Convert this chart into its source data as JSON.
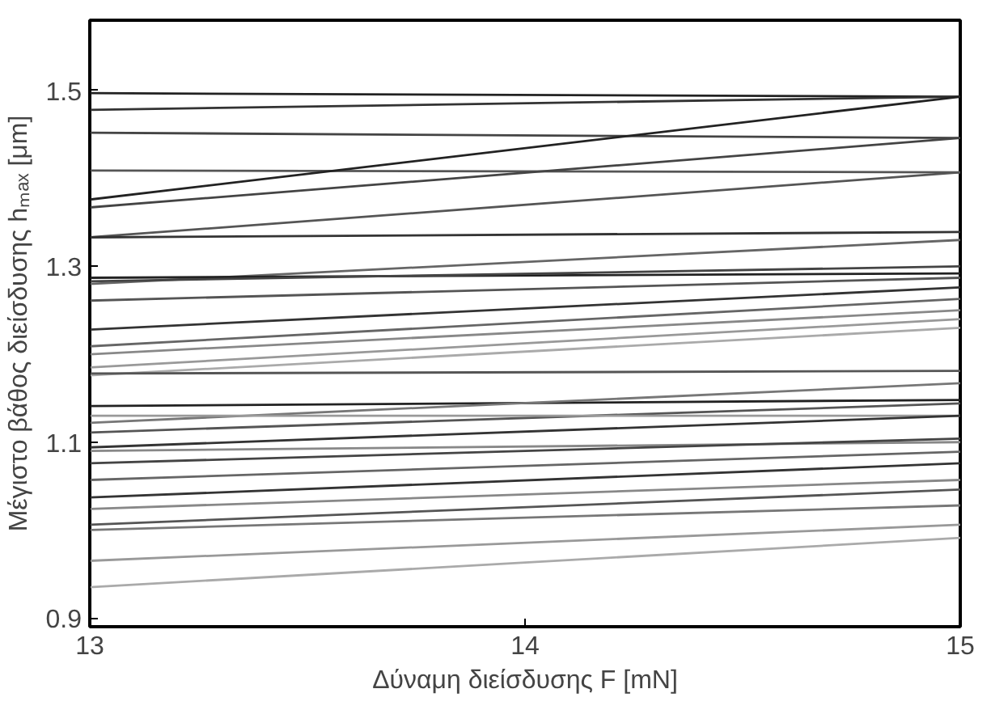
{
  "chart_data": {
    "type": "line",
    "xlabel": "Δύναμη διείσδυσης F [mN]",
    "ylabel": "Μέγιστο βάθος διείσδυσης hₘₐₓ [μm]",
    "x": [
      13,
      15
    ],
    "xlim": [
      13,
      15
    ],
    "ylim": [
      0.89,
      1.58
    ],
    "xticks": [
      13,
      14,
      15
    ],
    "yticks": [
      0.9,
      1.1,
      1.3,
      1.5
    ],
    "grid": false,
    "marker": "none",
    "line_style": "solid",
    "series": [
      {
        "color": "#222222",
        "values": [
          1.497,
          1.493
        ]
      },
      {
        "color": "#333333",
        "values": [
          1.478,
          1.493
        ]
      },
      {
        "color": "#444444",
        "values": [
          1.452,
          1.446
        ]
      },
      {
        "color": "#555555",
        "values": [
          1.409,
          1.407
        ]
      },
      {
        "color": "#222222",
        "values": [
          1.376,
          1.493
        ]
      },
      {
        "color": "#444444",
        "values": [
          1.367,
          1.446
        ]
      },
      {
        "color": "#555555",
        "values": [
          1.333,
          1.407
        ]
      },
      {
        "color": "#333333",
        "values": [
          1.333,
          1.339
        ]
      },
      {
        "color": "#666666",
        "values": [
          1.28,
          1.33
        ]
      },
      {
        "color": "#222222",
        "values": [
          1.287,
          1.292
        ]
      },
      {
        "color": "#444444",
        "values": [
          1.283,
          1.3
        ]
      },
      {
        "color": "#555555",
        "values": [
          1.261,
          1.287
        ]
      },
      {
        "color": "#333333",
        "values": [
          1.228,
          1.276
        ]
      },
      {
        "color": "#666666",
        "values": [
          1.209,
          1.263
        ]
      },
      {
        "color": "#888888",
        "values": [
          1.2,
          1.25
        ]
      },
      {
        "color": "#999999",
        "values": [
          1.185,
          1.24
        ]
      },
      {
        "color": "#aaaaaa",
        "values": [
          1.176,
          1.23
        ]
      },
      {
        "color": "#555555",
        "values": [
          1.178,
          1.181
        ]
      },
      {
        "color": "#222222",
        "values": [
          1.141,
          1.148
        ]
      },
      {
        "color": "#777777",
        "values": [
          1.122,
          1.167
        ]
      },
      {
        "color": "#555555",
        "values": [
          1.111,
          1.144
        ]
      },
      {
        "color": "#999999",
        "values": [
          1.13,
          1.13
        ]
      },
      {
        "color": "#333333",
        "values": [
          1.094,
          1.13
        ]
      },
      {
        "color": "#888888",
        "values": [
          1.09,
          1.1
        ]
      },
      {
        "color": "#444444",
        "values": [
          1.076,
          1.104
        ]
      },
      {
        "color": "#666666",
        "values": [
          1.057,
          1.089
        ]
      },
      {
        "color": "#333333",
        "values": [
          1.037,
          1.076
        ]
      },
      {
        "color": "#888888",
        "values": [
          1.024,
          1.057
        ]
      },
      {
        "color": "#555555",
        "values": [
          1.006,
          1.046
        ]
      },
      {
        "color": "#777777",
        "values": [
          1.0,
          1.028
        ]
      },
      {
        "color": "#999999",
        "values": [
          0.965,
          1.006
        ]
      },
      {
        "color": "#aaaaaa",
        "values": [
          0.935,
          0.991
        ]
      }
    ]
  }
}
